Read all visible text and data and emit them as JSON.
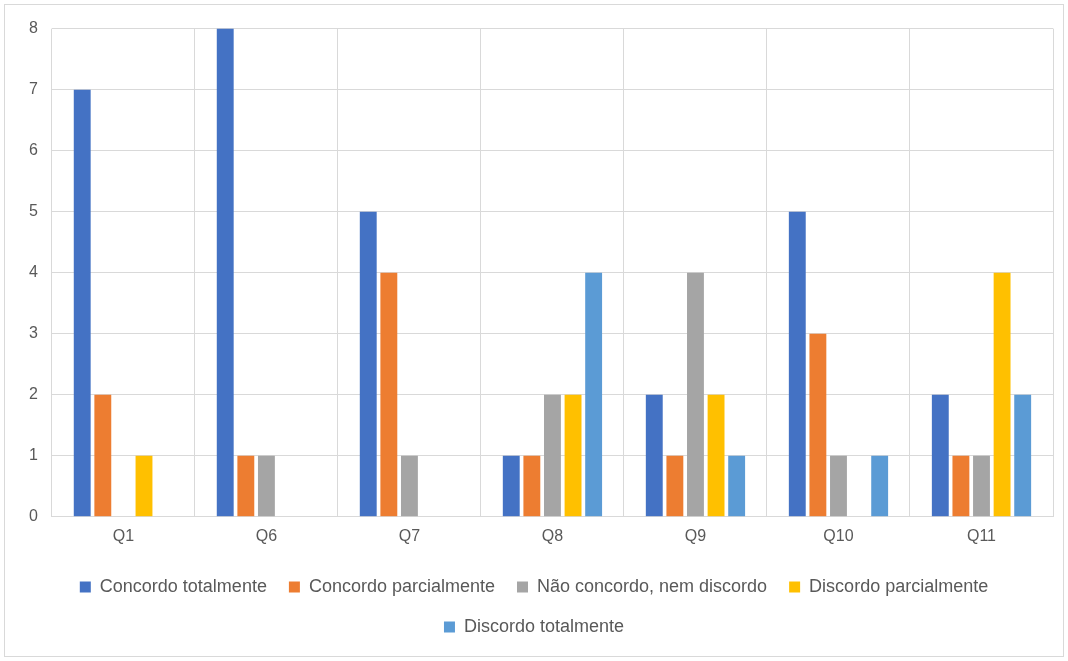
{
  "chart_data": {
    "type": "bar",
    "categories": [
      "Q1",
      "Q6",
      "Q7",
      "Q8",
      "Q9",
      "Q10",
      "Q11"
    ],
    "series": [
      {
        "name": "Concordo totalmente",
        "color": "#4472c4",
        "values": [
          7,
          8,
          5,
          1,
          2,
          5,
          2
        ]
      },
      {
        "name": "Concordo parcialmente",
        "color": "#ed7d31",
        "values": [
          2,
          1,
          4,
          1,
          1,
          3,
          1
        ]
      },
      {
        "name": "Não concordo, nem discordo",
        "color": "#a5a5a5",
        "values": [
          0,
          1,
          1,
          2,
          4,
          1,
          1
        ]
      },
      {
        "name": "Discordo parcialmente",
        "color": "#ffc000",
        "values": [
          1,
          0,
          0,
          2,
          2,
          0,
          4
        ]
      },
      {
        "name": "Discordo totalmente",
        "color": "#5b9bd5",
        "values": [
          0,
          0,
          0,
          4,
          1,
          1,
          2
        ]
      }
    ],
    "ylim": [
      0,
      8
    ],
    "yticks": [
      0,
      1,
      2,
      3,
      4,
      5,
      6,
      7,
      8
    ],
    "grid": true,
    "legend": "bottom"
  }
}
